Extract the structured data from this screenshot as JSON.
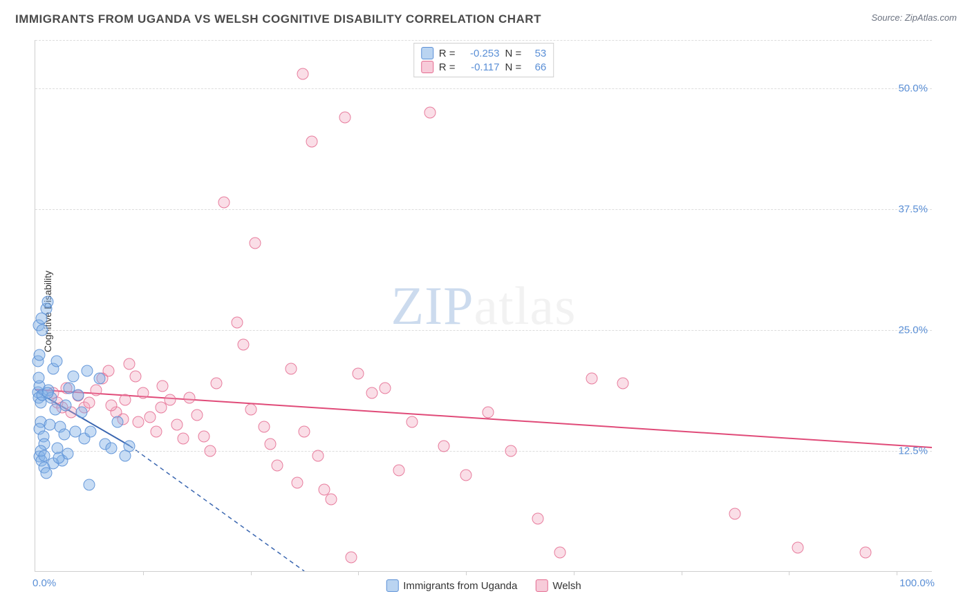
{
  "title": "IMMIGRANTS FROM UGANDA VS WELSH COGNITIVE DISABILITY CORRELATION CHART",
  "source": "Source: ZipAtlas.com",
  "y_axis_label": "Cognitive Disability",
  "watermark": {
    "part1": "ZIP",
    "part2": "atlas"
  },
  "chart": {
    "type": "scatter",
    "xlim": [
      0,
      100
    ],
    "ylim": [
      0,
      55
    ],
    "x_tick_labels": {
      "0": "0.0%",
      "100": "100.0%"
    },
    "x_minor_ticks": [
      12,
      24,
      36,
      48,
      60,
      72,
      84,
      96
    ],
    "y_gridlines": [
      {
        "value": 12.5,
        "label": "12.5%"
      },
      {
        "value": 25.0,
        "label": "25.0%"
      },
      {
        "value": 37.5,
        "label": "37.5%"
      },
      {
        "value": 50.0,
        "label": "50.0%"
      },
      {
        "value": 55.0,
        "label": ""
      }
    ],
    "background_color": "#ffffff",
    "grid_color": "#dcdcdc",
    "axis_color": "#cfcfcf",
    "tick_label_color": "#5a8fd6"
  },
  "series": {
    "a": {
      "label": "Immigrants from Uganda",
      "color_fill": "rgba(130,177,230,0.45)",
      "color_stroke": "#5a8fd6",
      "r_value": "-0.253",
      "n_value": "53",
      "trend": {
        "x1": 0.3,
        "y1": 18.5,
        "x2": 10.5,
        "y2": 13.0,
        "x2_dash": 30,
        "y2_dash": 0,
        "color": "#3a66b0",
        "width": 2
      },
      "points": [
        [
          0.3,
          18.6
        ],
        [
          0.4,
          18.0
        ],
        [
          0.5,
          19.2
        ],
        [
          0.6,
          17.5
        ],
        [
          0.4,
          20.1
        ],
        [
          0.8,
          18.3
        ],
        [
          0.3,
          21.8
        ],
        [
          0.5,
          22.4
        ],
        [
          0.4,
          25.5
        ],
        [
          0.7,
          26.2
        ],
        [
          1.2,
          27.2
        ],
        [
          1.4,
          27.9
        ],
        [
          0.6,
          15.5
        ],
        [
          0.5,
          14.8
        ],
        [
          0.9,
          14.0
        ],
        [
          1.0,
          13.2
        ],
        [
          0.5,
          11.9
        ],
        [
          0.7,
          11.5
        ],
        [
          1.5,
          18.8
        ],
        [
          1.8,
          18.0
        ],
        [
          2.0,
          21.0
        ],
        [
          2.4,
          21.8
        ],
        [
          2.8,
          15.0
        ],
        [
          3.2,
          14.2
        ],
        [
          3.8,
          19.0
        ],
        [
          4.2,
          20.2
        ],
        [
          4.8,
          18.3
        ],
        [
          5.2,
          16.5
        ],
        [
          1.0,
          10.8
        ],
        [
          1.2,
          10.2
        ],
        [
          2.5,
          12.8
        ],
        [
          3.0,
          11.5
        ],
        [
          3.6,
          12.2
        ],
        [
          5.5,
          13.8
        ],
        [
          6.2,
          14.5
        ],
        [
          7.8,
          13.2
        ],
        [
          8.5,
          12.8
        ],
        [
          9.2,
          15.5
        ],
        [
          10.0,
          12.0
        ],
        [
          10.5,
          13.0
        ],
        [
          5.8,
          20.8
        ],
        [
          7.2,
          20.0
        ],
        [
          1.6,
          15.2
        ],
        [
          2.2,
          16.8
        ],
        [
          0.6,
          12.5
        ],
        [
          1.0,
          12.0
        ],
        [
          2.0,
          11.2
        ],
        [
          2.6,
          11.8
        ],
        [
          4.5,
          14.5
        ],
        [
          6.0,
          9.0
        ],
        [
          0.8,
          25.0
        ],
        [
          1.4,
          18.5
        ],
        [
          3.4,
          17.2
        ]
      ]
    },
    "b": {
      "label": "Welsh",
      "color_fill": "rgba(241,160,185,0.35)",
      "color_stroke": "#e46a8f",
      "r_value": "-0.117",
      "n_value": "66",
      "trend": {
        "x1": 0,
        "y1": 18.8,
        "x2": 100,
        "y2": 12.8,
        "color": "#e04a78",
        "width": 2
      },
      "points": [
        [
          2.0,
          18.5
        ],
        [
          3.5,
          19.0
        ],
        [
          4.8,
          18.2
        ],
        [
          5.5,
          17.0
        ],
        [
          6.8,
          18.8
        ],
        [
          7.5,
          20.0
        ],
        [
          8.2,
          20.8
        ],
        [
          9.0,
          16.5
        ],
        [
          9.8,
          15.8
        ],
        [
          10.5,
          21.5
        ],
        [
          11.2,
          20.2
        ],
        [
          12.0,
          18.5
        ],
        [
          12.8,
          16.0
        ],
        [
          13.5,
          14.5
        ],
        [
          14.2,
          19.2
        ],
        [
          15.0,
          17.8
        ],
        [
          15.8,
          15.2
        ],
        [
          16.5,
          13.8
        ],
        [
          17.2,
          18.0
        ],
        [
          18.0,
          16.2
        ],
        [
          18.8,
          14.0
        ],
        [
          19.5,
          12.5
        ],
        [
          20.2,
          19.5
        ],
        [
          21.0,
          38.2
        ],
        [
          22.5,
          25.8
        ],
        [
          23.2,
          23.5
        ],
        [
          24.0,
          16.8
        ],
        [
          25.5,
          15.0
        ],
        [
          26.2,
          13.2
        ],
        [
          27.0,
          11.0
        ],
        [
          28.5,
          21.0
        ],
        [
          29.2,
          9.2
        ],
        [
          30.0,
          14.5
        ],
        [
          30.8,
          44.5
        ],
        [
          31.5,
          12.0
        ],
        [
          32.2,
          8.5
        ],
        [
          33.0,
          7.5
        ],
        [
          34.5,
          47.0
        ],
        [
          35.2,
          1.5
        ],
        [
          36.0,
          20.5
        ],
        [
          37.5,
          18.5
        ],
        [
          39.0,
          19.0
        ],
        [
          40.5,
          10.5
        ],
        [
          42.0,
          15.5
        ],
        [
          44.0,
          47.5
        ],
        [
          45.5,
          13.0
        ],
        [
          48.0,
          10.0
        ],
        [
          50.5,
          16.5
        ],
        [
          53.0,
          12.5
        ],
        [
          56.0,
          5.5
        ],
        [
          58.5,
          2.0
        ],
        [
          62.0,
          20.0
        ],
        [
          65.5,
          19.5
        ],
        [
          78.0,
          6.0
        ],
        [
          85.0,
          2.5
        ],
        [
          92.5,
          2.0
        ],
        [
          29.8,
          51.5
        ],
        [
          24.5,
          34.0
        ],
        [
          2.5,
          17.5
        ],
        [
          3.0,
          17.0
        ],
        [
          4.0,
          16.5
        ],
        [
          6.0,
          17.5
        ],
        [
          8.5,
          17.2
        ],
        [
          10.0,
          17.8
        ],
        [
          11.5,
          15.5
        ],
        [
          14.0,
          17.0
        ]
      ]
    }
  },
  "legend_top": {
    "r_label": "R =",
    "n_label": "N ="
  },
  "legend_bottom": {
    "a": "Immigrants from Uganda",
    "b": "Welsh"
  }
}
